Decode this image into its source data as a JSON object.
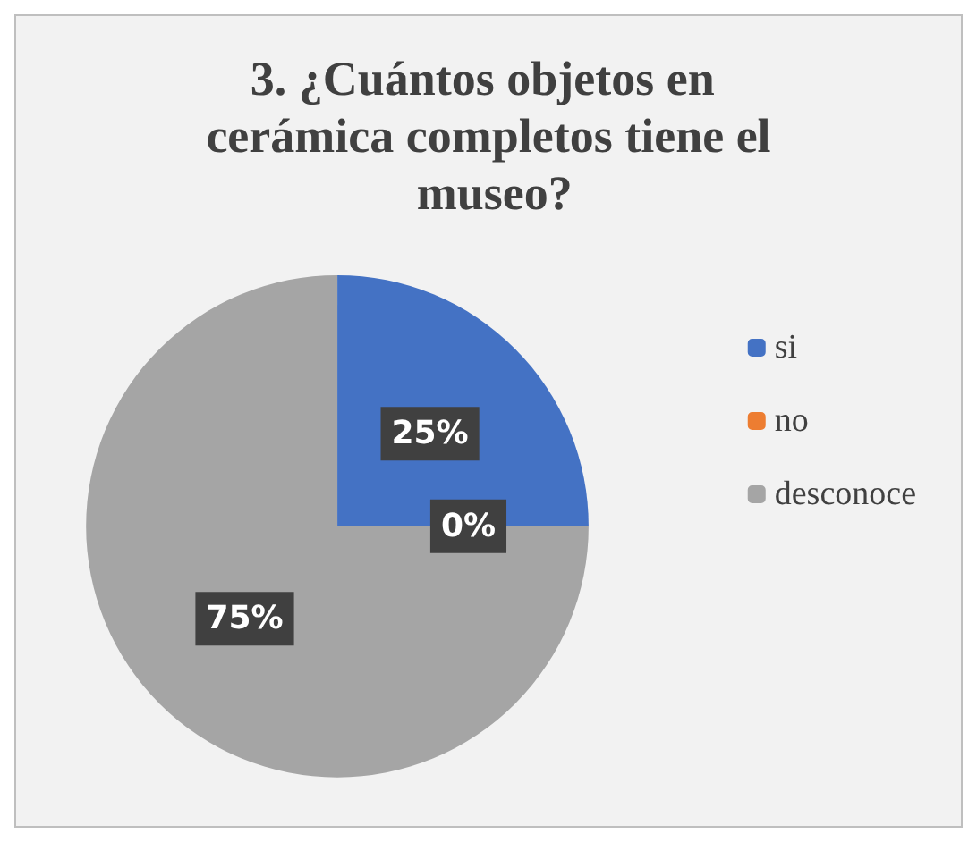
{
  "chart_data": {
    "type": "pie",
    "title": "3. ¿Cuántos objetos en cerámica completos tiene el museo?",
    "categories": [
      "si",
      "no",
      "desconoce"
    ],
    "values": [
      25,
      0,
      75
    ],
    "colors": [
      "#4472c4",
      "#ed7d31",
      "#a5a5a5"
    ],
    "value_labels": [
      "25%",
      "0%",
      "75%"
    ],
    "legend": "right"
  }
}
